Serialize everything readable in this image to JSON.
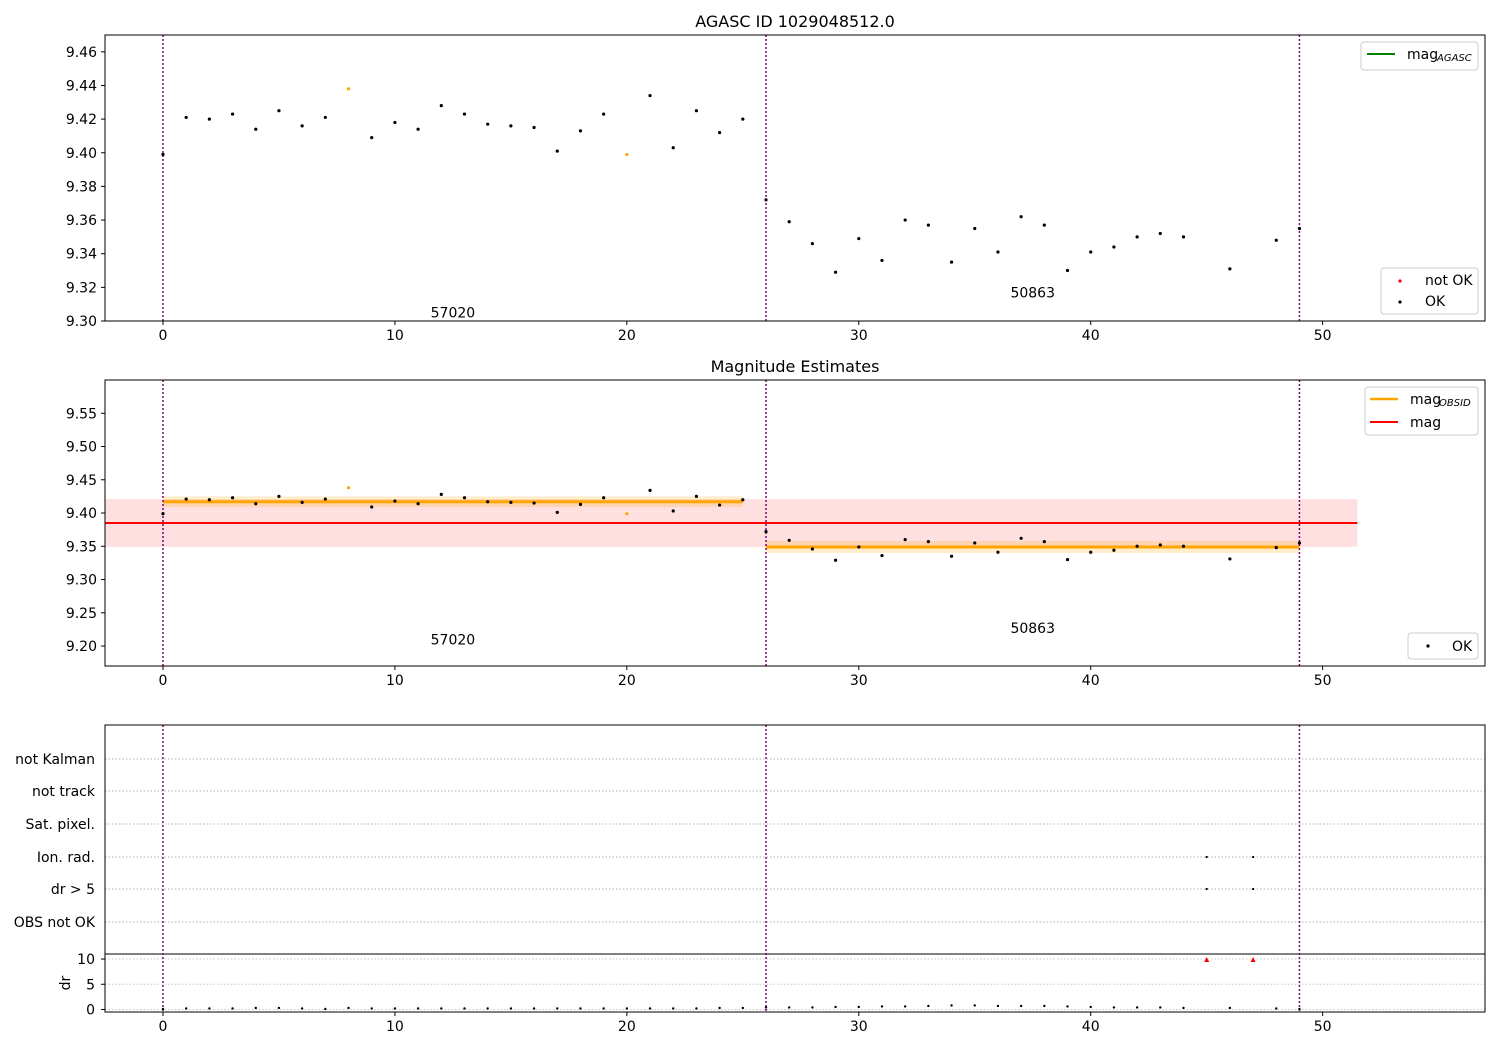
{
  "chart_data": [
    {
      "type": "scatter",
      "title": "AGASC ID 1029048512.0",
      "xlim": [
        -2.5,
        57
      ],
      "ylim": [
        9.3,
        9.47
      ],
      "x_ticks": [
        "0",
        "10",
        "20",
        "30",
        "40",
        "50"
      ],
      "y_ticks": [
        "9.30",
        "9.32",
        "9.34",
        "9.36",
        "9.38",
        "9.40",
        "9.42",
        "9.44",
        "9.46"
      ],
      "obs_boundaries": [
        0,
        26,
        49
      ],
      "obsid_labels": [
        {
          "text": "57020",
          "x": 12.5,
          "y": 9.305
        },
        {
          "text": "50863",
          "x": 37.5,
          "y": 9.317
        }
      ],
      "legend_upper": [
        {
          "label": "mag",
          "sub": "AGASC",
          "color": "#008000"
        }
      ],
      "legend_lower": [
        {
          "label": "not OK",
          "color": "#ff0000"
        },
        {
          "label": "OK",
          "color": "#000000"
        }
      ],
      "series": [
        {
          "name": "OK",
          "color": "#000000",
          "x": [
            0,
            1,
            2,
            3,
            4,
            5,
            6,
            7,
            9,
            10,
            11,
            12,
            13,
            14,
            15,
            16,
            17,
            18,
            19,
            21,
            22,
            23,
            24,
            25,
            26,
            27,
            28,
            29,
            30,
            31,
            32,
            33,
            34,
            35,
            36,
            37,
            38,
            39,
            40,
            41,
            42,
            43,
            44,
            46,
            48,
            49
          ],
          "y": [
            9.399,
            9.421,
            9.42,
            9.423,
            9.414,
            9.425,
            9.416,
            9.421,
            9.409,
            9.418,
            9.414,
            9.428,
            9.423,
            9.417,
            9.416,
            9.415,
            9.401,
            9.413,
            9.423,
            9.434,
            9.403,
            9.425,
            9.412,
            9.42,
            9.372,
            9.359,
            9.346,
            9.329,
            9.349,
            9.336,
            9.36,
            9.357,
            9.335,
            9.355,
            9.341,
            9.362,
            9.357,
            9.33,
            9.341,
            9.344,
            9.35,
            9.352,
            9.35,
            9.331,
            9.348,
            9.355
          ]
        },
        {
          "name": "orange",
          "color": "#ffa500",
          "x": [
            8,
            20
          ],
          "y": [
            9.438,
            9.399
          ]
        }
      ]
    },
    {
      "type": "scatter",
      "title": "Magnitude Estimates",
      "xlim": [
        -2.5,
        57
      ],
      "ylim": [
        9.17,
        9.6
      ],
      "x_ticks": [
        "0",
        "10",
        "20",
        "30",
        "40",
        "50"
      ],
      "y_ticks": [
        "9.20",
        "9.25",
        "9.30",
        "9.35",
        "9.40",
        "9.45",
        "9.50",
        "9.55"
      ],
      "obs_boundaries": [
        0,
        26,
        49
      ],
      "obsid_labels": [
        {
          "text": "57020",
          "x": 12.5,
          "y": 9.21
        },
        {
          "text": "50863",
          "x": 37.5,
          "y": 9.227
        }
      ],
      "legend_upper": [
        {
          "label": "mag",
          "sub": "OBSID",
          "color": "#ffa500"
        },
        {
          "label": "mag",
          "sub": "",
          "color": "#ff0000"
        }
      ],
      "legend_lower": [
        {
          "label": "OK",
          "color": "#000000"
        }
      ],
      "mag": {
        "value": 9.385,
        "low": 9.349,
        "high": 9.421,
        "x": [
          -2.5,
          51.5
        ]
      },
      "mag_obsid": [
        {
          "x": [
            0,
            25
          ],
          "value": 9.417,
          "low": 9.409,
          "high": 9.425
        },
        {
          "x": [
            26,
            49
          ],
          "value": 9.349,
          "low": 9.34,
          "high": 9.358
        }
      ],
      "series": [
        {
          "name": "OK",
          "color": "#000000",
          "x": [
            0,
            1,
            2,
            3,
            4,
            5,
            6,
            7,
            9,
            10,
            11,
            12,
            13,
            14,
            15,
            16,
            17,
            18,
            19,
            21,
            22,
            23,
            24,
            25,
            26,
            27,
            28,
            29,
            30,
            31,
            32,
            33,
            34,
            35,
            36,
            37,
            38,
            39,
            40,
            41,
            42,
            43,
            44,
            46,
            48,
            49
          ],
          "y": [
            9.399,
            9.421,
            9.42,
            9.423,
            9.414,
            9.425,
            9.416,
            9.421,
            9.409,
            9.418,
            9.414,
            9.428,
            9.423,
            9.417,
            9.416,
            9.415,
            9.401,
            9.413,
            9.423,
            9.434,
            9.403,
            9.425,
            9.412,
            9.42,
            9.372,
            9.359,
            9.346,
            9.329,
            9.349,
            9.336,
            9.36,
            9.357,
            9.335,
            9.355,
            9.341,
            9.362,
            9.357,
            9.33,
            9.341,
            9.344,
            9.35,
            9.352,
            9.35,
            9.331,
            9.348,
            9.355
          ]
        },
        {
          "name": "orange",
          "color": "#ffa500",
          "x": [
            8,
            20
          ],
          "y": [
            9.438,
            9.399
          ]
        }
      ]
    },
    {
      "type": "scatter",
      "xlim": [
        -2.5,
        57
      ],
      "x_ticks": [
        "0",
        "10",
        "20",
        "30",
        "40",
        "50"
      ],
      "obs_boundaries": [
        0,
        26,
        49
      ],
      "flag_labels": [
        "not Kalman",
        "not track",
        "Sat. pixel.",
        "Ion. rad.",
        "dr > 5",
        "OBS not OK"
      ],
      "flags": [
        {
          "label": "Ion. rad.",
          "x": [
            45,
            47
          ]
        },
        {
          "label": "dr > 5",
          "x": [
            45,
            47
          ]
        }
      ],
      "dr": {
        "ylabel": "dr",
        "ylim": [
          -0.5,
          11
        ],
        "y_ticks": [
          "0",
          "5",
          "10"
        ],
        "ok_x": [
          0,
          1,
          2,
          3,
          4,
          5,
          6,
          7,
          8,
          9,
          10,
          11,
          12,
          13,
          14,
          15,
          16,
          17,
          18,
          19,
          20,
          21,
          22,
          23,
          24,
          25,
          26,
          27,
          28,
          29,
          30,
          31,
          32,
          33,
          34,
          35,
          36,
          37,
          38,
          39,
          40,
          41,
          42,
          43,
          44,
          46,
          48,
          49
        ],
        "ok_y": [
          0.1,
          0.2,
          0.2,
          0.2,
          0.3,
          0.3,
          0.2,
          0.1,
          0.3,
          0.2,
          0.2,
          0.2,
          0.2,
          0.2,
          0.2,
          0.2,
          0.2,
          0.2,
          0.2,
          0.2,
          0.2,
          0.2,
          0.2,
          0.2,
          0.3,
          0.3,
          0.4,
          0.4,
          0.4,
          0.5,
          0.5,
          0.6,
          0.6,
          0.7,
          0.8,
          0.8,
          0.7,
          0.7,
          0.7,
          0.6,
          0.5,
          0.4,
          0.4,
          0.4,
          0.3,
          0.3,
          0.2,
          0.1
        ],
        "bad_x": [
          45,
          47
        ],
        "bad_y": [
          9.8,
          9.8
        ]
      }
    }
  ]
}
